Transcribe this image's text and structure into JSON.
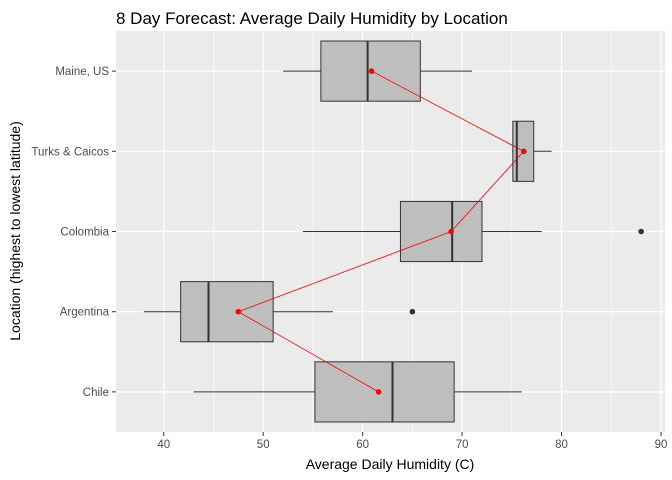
{
  "chart_data": {
    "type": "boxplot",
    "title": "8 Day Forecast: Average Daily Humidity by Location",
    "xlabel": "Average Daily Humidity (C)",
    "ylabel": "Location (highest to lowest latitude)",
    "xlim": [
      35.2,
      90.4
    ],
    "x_ticks": [
      40,
      50,
      60,
      70,
      80,
      90
    ],
    "categories": [
      "Maine, US",
      "Turks & Caicos",
      "Colombia",
      "Argentina",
      "Chile"
    ],
    "boxes": [
      {
        "label": "Maine, US",
        "whisker_low": 52,
        "q1": 55.8,
        "median": 60.5,
        "q3": 65.8,
        "whisker_high": 71,
        "outliers": [],
        "mean": 60.9
      },
      {
        "label": "Turks & Caicos",
        "whisker_low": 75,
        "q1": 75.1,
        "median": 75.5,
        "q3": 77.2,
        "whisker_high": 79,
        "outliers": [],
        "mean": 76.2
      },
      {
        "label": "Colombia",
        "whisker_low": 54,
        "q1": 63.8,
        "median": 69,
        "q3": 72,
        "whisker_high": 78,
        "outliers": [
          88
        ],
        "mean": 68.9
      },
      {
        "label": "Argentina",
        "whisker_low": 38,
        "q1": 41.7,
        "median": 44.5,
        "q3": 51,
        "whisker_high": 57,
        "outliers": [
          65
        ],
        "mean": 47.5
      },
      {
        "label": "Chile",
        "whisker_low": 43,
        "q1": 55.2,
        "median": 63,
        "q3": 69.2,
        "whisker_high": 76,
        "outliers": [],
        "mean": 61.6
      }
    ],
    "mean_line_color": "#ff0000",
    "box_fill": "#bebebe",
    "panel_background": "#ebebeb",
    "grid": true,
    "legend": "none"
  }
}
